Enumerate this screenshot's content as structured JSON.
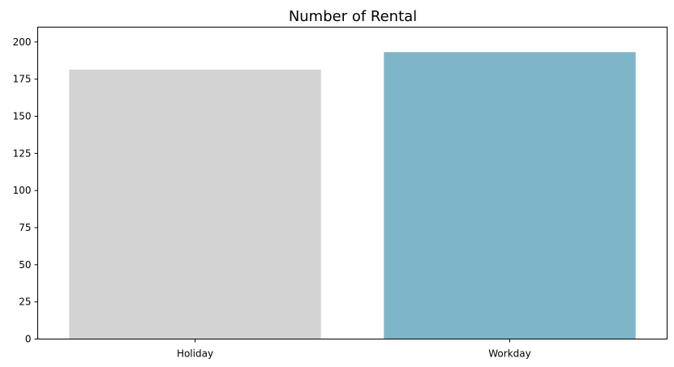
{
  "chart_data": {
    "type": "bar",
    "title": "Number of Rental",
    "xlabel": "",
    "ylabel": "",
    "categories": [
      "Holiday",
      "Workday"
    ],
    "values": [
      181.4,
      193.2
    ],
    "colors": [
      "#d3d3d3",
      "#7fb5c8"
    ],
    "ylim": [
      0,
      210
    ],
    "yticks": [
      0,
      25,
      50,
      75,
      100,
      125,
      150,
      175,
      200
    ],
    "grid": false,
    "legend": "none"
  }
}
